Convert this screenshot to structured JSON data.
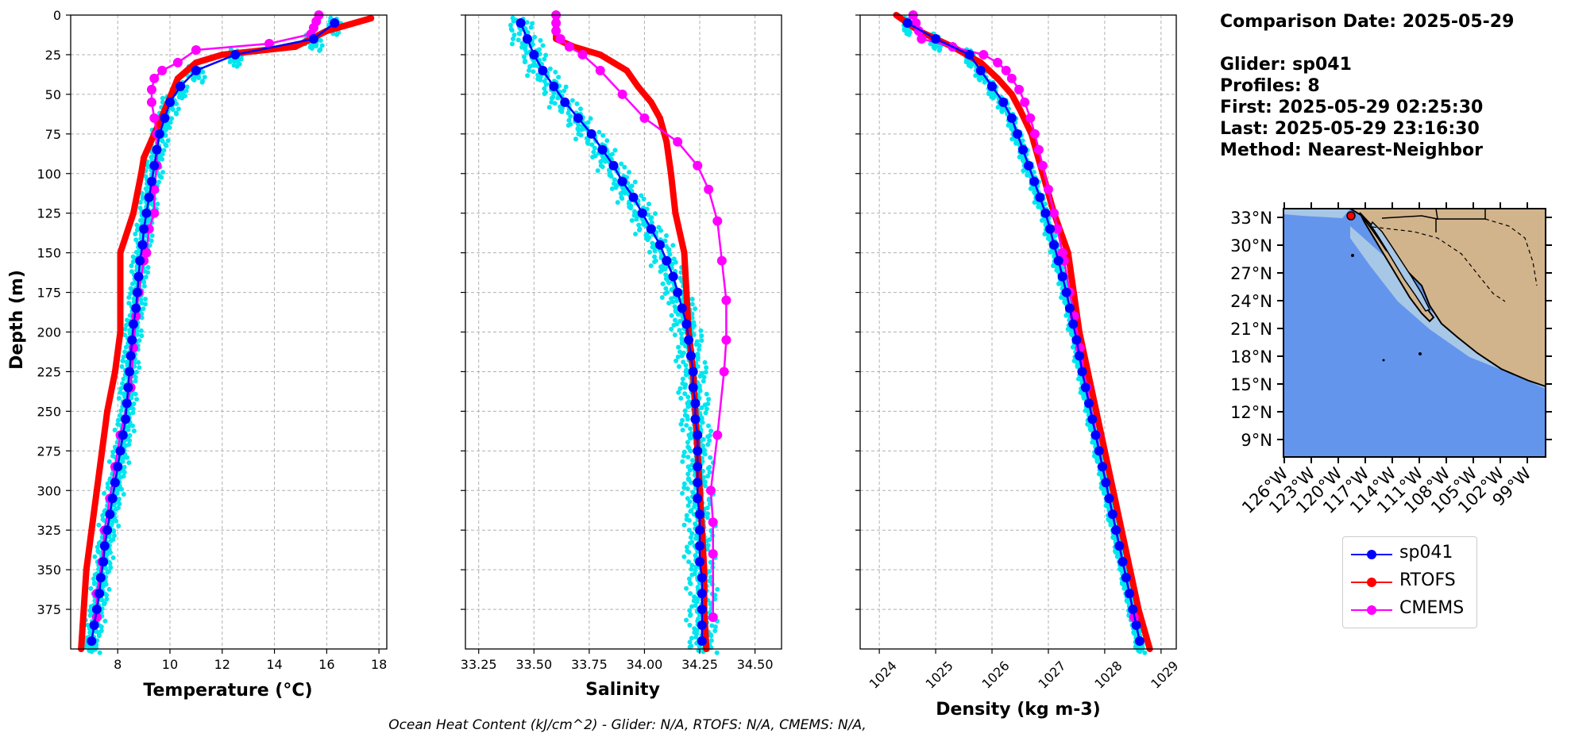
{
  "chart_data": [
    {
      "type": "line",
      "xlabel": "Temperature (°C)",
      "ylabel": "Depth (m)",
      "xlim": [
        6.2,
        18.3
      ],
      "ylim": [
        400,
        0
      ],
      "xticks": [
        8,
        10,
        12,
        14,
        16,
        18
      ],
      "yticks": [
        0,
        25,
        50,
        75,
        100,
        125,
        150,
        175,
        200,
        225,
        250,
        275,
        300,
        325,
        350,
        375
      ],
      "grid": true,
      "series": [
        {
          "name": "sp041",
          "color": "#0000ff",
          "depth": [
            5,
            15,
            25,
            35,
            45,
            55,
            65,
            75,
            85,
            95,
            105,
            115,
            125,
            135,
            145,
            155,
            165,
            175,
            185,
            195,
            205,
            215,
            225,
            235,
            245,
            255,
            265,
            275,
            285,
            295,
            305,
            315,
            325,
            335,
            345,
            355,
            365,
            375,
            385,
            395
          ],
          "values": [
            16.3,
            15.5,
            12.5,
            11.0,
            10.4,
            10.0,
            9.8,
            9.6,
            9.5,
            9.4,
            9.3,
            9.2,
            9.1,
            9.0,
            8.95,
            8.85,
            8.8,
            8.75,
            8.7,
            8.6,
            8.55,
            8.5,
            8.45,
            8.4,
            8.35,
            8.3,
            8.2,
            8.1,
            8.0,
            7.9,
            7.8,
            7.7,
            7.6,
            7.5,
            7.45,
            7.35,
            7.3,
            7.2,
            7.1,
            7.0
          ]
        },
        {
          "name": "RTOFS",
          "color": "#ff0000",
          "depth": [
            2,
            10,
            20,
            25,
            30,
            40,
            60,
            75,
            90,
            100,
            125,
            150,
            175,
            200,
            225,
            250,
            275,
            300,
            325,
            350,
            375,
            400
          ],
          "values": [
            17.7,
            16.0,
            14.8,
            12.0,
            11.0,
            10.3,
            9.8,
            9.4,
            9.0,
            8.9,
            8.6,
            8.1,
            8.1,
            8.1,
            7.9,
            7.6,
            7.4,
            7.2,
            7.0,
            6.8,
            6.7,
            6.6
          ]
        },
        {
          "name": "CMEMS",
          "color": "#ff00ff",
          "depth": [
            0,
            4,
            8,
            12,
            18,
            22,
            30,
            35,
            40,
            47,
            55,
            65,
            75,
            85,
            95,
            110,
            125,
            135,
            150,
            155,
            175,
            190,
            210,
            235,
            265,
            285,
            305,
            325,
            345,
            365,
            380
          ],
          "values": [
            15.7,
            15.6,
            15.5,
            15.4,
            13.8,
            11.0,
            10.3,
            9.7,
            9.4,
            9.3,
            9.3,
            9.4,
            9.5,
            9.5,
            9.5,
            9.4,
            9.4,
            9.2,
            9.1,
            9.0,
            8.8,
            8.7,
            8.6,
            8.5,
            8.1,
            7.9,
            7.7,
            7.5,
            7.4,
            7.2,
            7.2
          ]
        }
      ]
    },
    {
      "type": "line",
      "xlabel": "Salinity",
      "ylim": [
        400,
        0
      ],
      "xlim": [
        33.19,
        34.62
      ],
      "xticks": [
        "33.25",
        "33.50",
        "33.75",
        "34.00",
        "34.25",
        "34.50"
      ],
      "grid": true,
      "series": [
        {
          "name": "sp041",
          "color": "#0000ff",
          "depth": [
            5,
            15,
            25,
            35,
            45,
            55,
            65,
            75,
            85,
            95,
            105,
            115,
            125,
            135,
            145,
            155,
            165,
            175,
            185,
            195,
            205,
            215,
            225,
            235,
            245,
            255,
            265,
            275,
            285,
            295,
            305,
            315,
            325,
            335,
            345,
            355,
            365,
            375,
            385,
            395
          ],
          "values": [
            33.44,
            33.47,
            33.5,
            33.54,
            33.59,
            33.64,
            33.7,
            33.76,
            33.81,
            33.86,
            33.9,
            33.95,
            33.99,
            34.03,
            34.07,
            34.1,
            34.13,
            34.15,
            34.17,
            34.19,
            34.2,
            34.21,
            34.22,
            34.22,
            34.23,
            34.23,
            34.24,
            34.24,
            34.24,
            34.24,
            34.24,
            34.25,
            34.25,
            34.25,
            34.25,
            34.26,
            34.26,
            34.26,
            34.26,
            34.26
          ]
        },
        {
          "name": "RTOFS",
          "color": "#ff0000",
          "depth": [
            0,
            15,
            20,
            25,
            30,
            35,
            45,
            55,
            65,
            80,
            100,
            125,
            150,
            175,
            200,
            225,
            250,
            275,
            300,
            325,
            350,
            375,
            400
          ],
          "values": [
            33.6,
            33.6,
            33.68,
            33.8,
            33.86,
            33.92,
            33.97,
            34.03,
            34.07,
            34.1,
            34.12,
            34.14,
            34.18,
            34.19,
            34.2,
            34.22,
            34.23,
            34.24,
            34.25,
            34.26,
            34.27,
            34.27,
            34.28
          ]
        },
        {
          "name": "CMEMS",
          "color": "#ff00ff",
          "depth": [
            0,
            5,
            10,
            15,
            20,
            25,
            35,
            50,
            65,
            80,
            95,
            110,
            130,
            155,
            180,
            205,
            225,
            265,
            300,
            320,
            340,
            380
          ],
          "values": [
            33.6,
            33.6,
            33.6,
            33.62,
            33.66,
            33.72,
            33.8,
            33.9,
            34.0,
            34.15,
            34.24,
            34.29,
            34.33,
            34.35,
            34.37,
            34.37,
            34.36,
            34.33,
            34.3,
            34.31,
            34.31,
            34.31
          ]
        }
      ]
    },
    {
      "type": "line",
      "xlabel": "Density (kg m-3)",
      "ylim": [
        400,
        0
      ],
      "xlim": [
        1023.66,
        1029.27
      ],
      "xticks": [
        "1024",
        "1025",
        "1026",
        "1027",
        "1028",
        "1029"
      ],
      "grid": true,
      "series": [
        {
          "name": "sp041",
          "color": "#0000ff",
          "depth": [
            5,
            15,
            25,
            35,
            45,
            55,
            65,
            75,
            85,
            95,
            105,
            115,
            125,
            135,
            145,
            155,
            165,
            175,
            185,
            195,
            205,
            215,
            225,
            235,
            245,
            255,
            265,
            275,
            285,
            295,
            305,
            315,
            325,
            335,
            345,
            355,
            365,
            375,
            385,
            395
          ],
          "values": [
            1024.5,
            1025.0,
            1025.6,
            1025.8,
            1026.0,
            1026.2,
            1026.35,
            1026.45,
            1026.55,
            1026.65,
            1026.75,
            1026.85,
            1026.95,
            1027.03,
            1027.1,
            1027.18,
            1027.25,
            1027.32,
            1027.38,
            1027.44,
            1027.5,
            1027.55,
            1027.6,
            1027.66,
            1027.72,
            1027.78,
            1027.84,
            1027.9,
            1027.96,
            1028.02,
            1028.08,
            1028.14,
            1028.2,
            1028.26,
            1028.32,
            1028.38,
            1028.44,
            1028.5,
            1028.56,
            1028.62
          ]
        },
        {
          "name": "RTOFS",
          "color": "#ff0000",
          "depth": [
            0,
            10,
            20,
            30,
            40,
            50,
            60,
            75,
            100,
            125,
            150,
            175,
            200,
            225,
            250,
            275,
            300,
            325,
            350,
            375,
            400
          ],
          "values": [
            1024.3,
            1024.7,
            1025.3,
            1025.8,
            1026.1,
            1026.35,
            1026.5,
            1026.7,
            1026.9,
            1027.1,
            1027.35,
            1027.45,
            1027.55,
            1027.7,
            1027.85,
            1028.0,
            1028.15,
            1028.3,
            1028.45,
            1028.6,
            1028.8
          ]
        },
        {
          "name": "CMEMS",
          "color": "#ff00ff",
          "depth": [
            0,
            5,
            10,
            15,
            20,
            25,
            30,
            35,
            40,
            47,
            55,
            65,
            75,
            85,
            95,
            110,
            125,
            135,
            150,
            155,
            175,
            190,
            210,
            235,
            265,
            285,
            305,
            325,
            345,
            365,
            380
          ],
          "values": [
            1024.6,
            1024.65,
            1024.7,
            1024.75,
            1025.3,
            1025.85,
            1026.1,
            1026.25,
            1026.35,
            1026.48,
            1026.58,
            1026.68,
            1026.76,
            1026.83,
            1026.9,
            1027.0,
            1027.1,
            1027.16,
            1027.25,
            1027.28,
            1027.38,
            1027.46,
            1027.56,
            1027.68,
            1027.85,
            1027.96,
            1028.08,
            1028.2,
            1028.32,
            1028.44,
            1028.52
          ]
        }
      ]
    }
  ],
  "info": {
    "line1": "Comparison Date: 2025-05-29",
    "line2": "Glider: sp041",
    "line3": "Profiles: 8",
    "line4": "First: 2025-05-29 02:25:30",
    "line5": "Last: 2025-05-29 23:16:30",
    "line6": "Method: Nearest-Neighbor"
  },
  "map": {
    "lat_labels": [
      "33°N",
      "30°N",
      "27°N",
      "24°N",
      "21°N",
      "18°N",
      "15°N",
      "12°N",
      "9°N"
    ],
    "lon_labels": [
      "126°W",
      "123°W",
      "120°W",
      "117°W",
      "114°W",
      "111°W",
      "108°W",
      "105°W",
      "102°W",
      "99°W"
    ],
    "ocean_color": "#6495ed",
    "land_color": "#d2b48c",
    "shelf_color": "#a7c7e7",
    "glider_marker_color": "#ff0000"
  },
  "legend": [
    {
      "label": "sp041",
      "color": "#0000ff"
    },
    {
      "label": "RTOFS",
      "color": "#ff0000"
    },
    {
      "label": "CMEMS",
      "color": "#ff00ff"
    }
  ],
  "footer": "Ocean Heat Content (kJ/cm^2) - Glider: N/A,  RTOFS: N/A,  CMEMS: N/A,"
}
